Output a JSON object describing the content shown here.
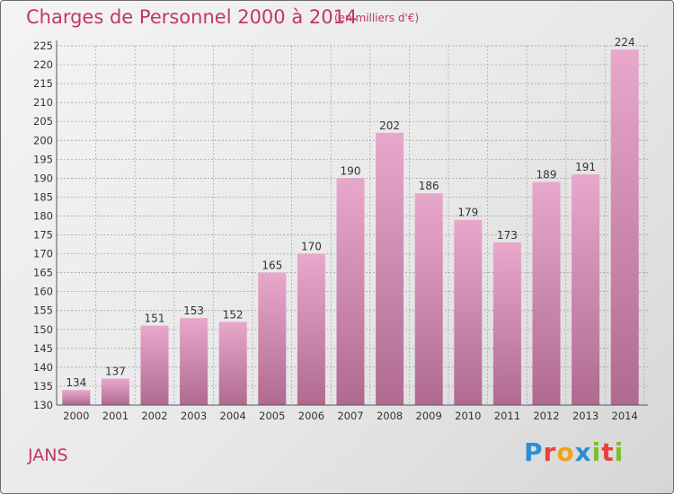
{
  "header": {
    "title": "Charges de Personnel 2000 à 2014",
    "subtitle": "(en milliers d'€)"
  },
  "footer": {
    "commune": "JANS",
    "logo_text": "Proxiti"
  },
  "colors": {
    "title": "#c2356b",
    "bar_light": "#e8a8cb",
    "bar_dark": "#b06a90",
    "grid": "#999999"
  },
  "chart_data": {
    "type": "bar",
    "title": "Charges de Personnel 2000 à 2014",
    "subtitle": "(en milliers d'€)",
    "categories": [
      "2000",
      "2001",
      "2002",
      "2003",
      "2004",
      "2005",
      "2006",
      "2007",
      "2008",
      "2009",
      "2010",
      "2011",
      "2012",
      "2013",
      "2014"
    ],
    "values": [
      134,
      137,
      151,
      153,
      152,
      165,
      170,
      190,
      202,
      186,
      179,
      173,
      189,
      191,
      224
    ],
    "ylim": [
      130,
      225
    ],
    "yticks": [
      130,
      135,
      140,
      145,
      150,
      155,
      160,
      165,
      170,
      175,
      180,
      185,
      190,
      195,
      200,
      205,
      210,
      215,
      220,
      225
    ],
    "grid": true,
    "xlabel": "",
    "ylabel": ""
  }
}
